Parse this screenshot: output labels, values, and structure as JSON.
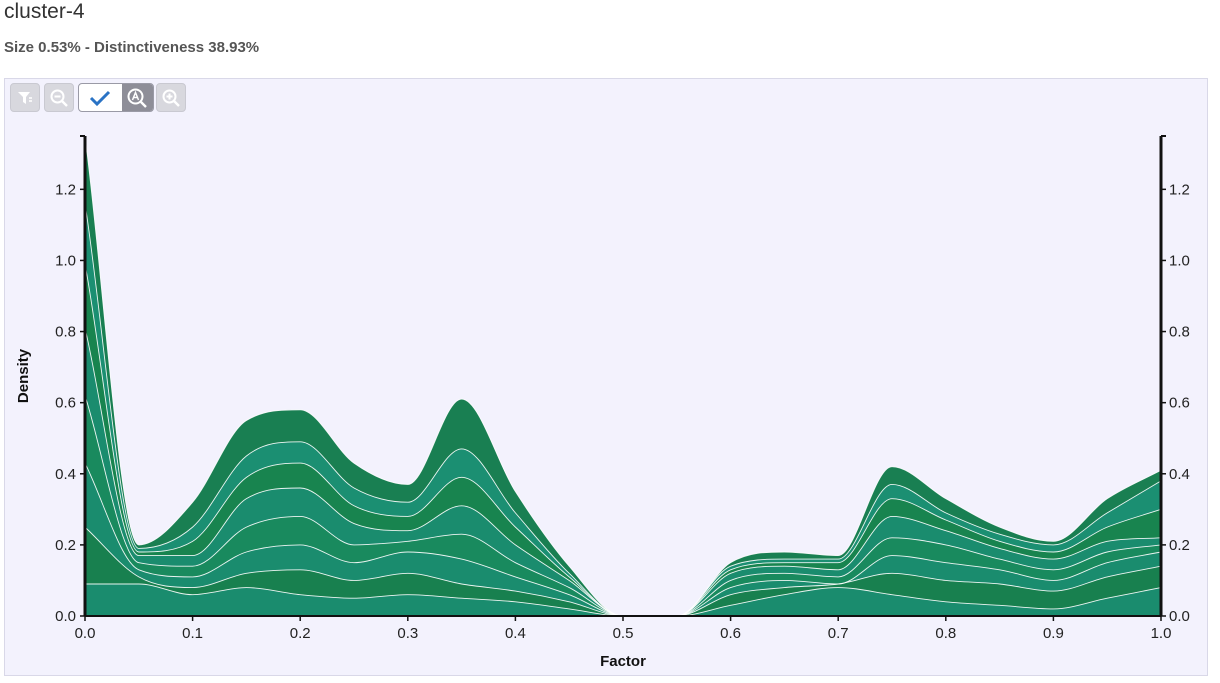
{
  "header": {
    "title": "cluster-4",
    "subtitle": "Size 0.53% - Distinctiveness 38.93%"
  },
  "toolbar": {
    "buttons": [
      {
        "name": "filter-button",
        "icon": "filter-icon"
      },
      {
        "name": "zoom-out-button",
        "icon": "zoom-out-icon"
      },
      {
        "name": "confirm-button",
        "icon": "checkmark-icon"
      },
      {
        "name": "auto-zoom-button",
        "icon": "auto-zoom-icon"
      },
      {
        "name": "zoom-in-button",
        "icon": "zoom-in-icon"
      }
    ]
  },
  "colors": {
    "fill_light": "#1a8c6e",
    "fill_dark": "#18804f",
    "stream_line": "#ffffff",
    "panel_bg": "#f3f2fd"
  },
  "chart_data": {
    "type": "area",
    "stacked": true,
    "title": "",
    "xlabel": "Factor",
    "ylabel": "Density",
    "xlim": [
      0.0,
      1.0
    ],
    "ylim": [
      0.0,
      1.35
    ],
    "x_ticks": [
      "0.0",
      "0.1",
      "0.2",
      "0.3",
      "0.4",
      "0.5",
      "0.6",
      "0.7",
      "0.8",
      "0.9",
      "1.0"
    ],
    "y_ticks": [
      "0.0",
      "0.2",
      "0.4",
      "0.6",
      "0.8",
      "1.0",
      "1.2"
    ],
    "y_axis_right": true,
    "grid": false,
    "legend": "none",
    "x": [
      0.0,
      0.05,
      0.1,
      0.15,
      0.2,
      0.25,
      0.3,
      0.35,
      0.4,
      0.45,
      0.5,
      0.55,
      0.6,
      0.65,
      0.7,
      0.75,
      0.8,
      0.85,
      0.9,
      0.95,
      1.0
    ],
    "series": [
      {
        "values": [
          0.09,
          0.09,
          0.06,
          0.08,
          0.06,
          0.05,
          0.06,
          0.05,
          0.04,
          0.02,
          0.0,
          0.0,
          0.03,
          0.06,
          0.08,
          0.06,
          0.04,
          0.03,
          0.02,
          0.05,
          0.08
        ]
      },
      {
        "values": [
          0.16,
          0.02,
          0.02,
          0.04,
          0.07,
          0.05,
          0.06,
          0.04,
          0.03,
          0.02,
          0.0,
          0.0,
          0.03,
          0.02,
          0.01,
          0.06,
          0.06,
          0.06,
          0.05,
          0.06,
          0.06
        ]
      },
      {
        "values": [
          0.18,
          0.02,
          0.03,
          0.06,
          0.07,
          0.05,
          0.06,
          0.07,
          0.04,
          0.02,
          0.0,
          0.0,
          0.02,
          0.02,
          0.0,
          0.05,
          0.05,
          0.04,
          0.03,
          0.04,
          0.04
        ]
      },
      {
        "values": [
          0.19,
          0.02,
          0.03,
          0.07,
          0.08,
          0.05,
          0.03,
          0.07,
          0.04,
          0.02,
          0.0,
          0.0,
          0.02,
          0.02,
          0.02,
          0.05,
          0.05,
          0.03,
          0.03,
          0.03,
          0.02
        ]
      },
      {
        "values": [
          0.19,
          0.02,
          0.03,
          0.08,
          0.08,
          0.06,
          0.03,
          0.08,
          0.05,
          0.02,
          0.0,
          0.0,
          0.02,
          0.02,
          0.02,
          0.06,
          0.04,
          0.03,
          0.03,
          0.03,
          0.02
        ]
      },
      {
        "values": [
          0.18,
          0.01,
          0.04,
          0.06,
          0.07,
          0.05,
          0.04,
          0.08,
          0.05,
          0.01,
          0.0,
          0.0,
          0.01,
          0.01,
          0.02,
          0.05,
          0.03,
          0.02,
          0.02,
          0.04,
          0.08
        ]
      },
      {
        "values": [
          0.17,
          0.01,
          0.04,
          0.06,
          0.06,
          0.05,
          0.04,
          0.08,
          0.04,
          0.01,
          0.0,
          0.0,
          0.01,
          0.01,
          0.01,
          0.04,
          0.02,
          0.02,
          0.02,
          0.04,
          0.08
        ]
      },
      {
        "values": [
          0.19,
          0.01,
          0.07,
          0.1,
          0.09,
          0.07,
          0.05,
          0.14,
          0.06,
          0.02,
          0.0,
          0.0,
          0.01,
          0.02,
          0.01,
          0.05,
          0.04,
          0.02,
          0.01,
          0.04,
          0.03
        ]
      }
    ]
  }
}
